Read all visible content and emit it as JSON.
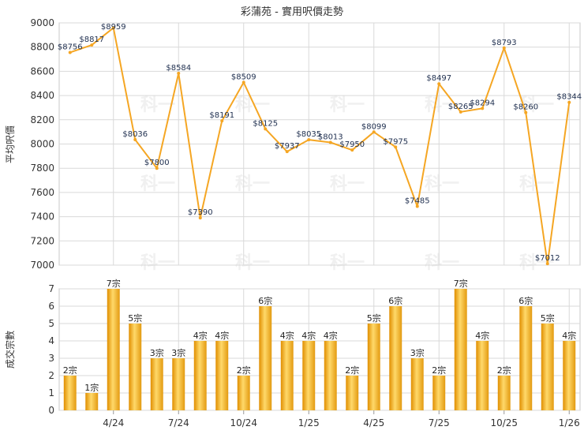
{
  "chart_data": [
    {
      "type": "line",
      "title": "彩蒲苑 - 實用呎價走勢",
      "ylabel": "平均呎價",
      "ylim": [
        7000,
        9000
      ],
      "yticks": [
        7000,
        7200,
        7400,
        7600,
        7800,
        8000,
        8200,
        8400,
        8600,
        8800,
        9000
      ],
      "values": [
        8756,
        8817,
        8959,
        8036,
        7800,
        8584,
        7390,
        8191,
        8509,
        8125,
        7937,
        8035,
        8013,
        7950,
        8099,
        7975,
        7485,
        8497,
        8265,
        8294,
        8793,
        8260,
        7012,
        8344
      ],
      "data_labels": [
        "$8756",
        "$8817",
        "$8959",
        "$8036",
        "$7800",
        "$8584",
        "$7390",
        "$8191",
        "$8509",
        "$8125",
        "$7937",
        "$8035",
        "$8013",
        "$7950",
        "$8099",
        "$7975",
        "$7485",
        "$8497",
        "$8265",
        "$8294",
        "$8793",
        "$8260",
        "$7012",
        "$8344"
      ],
      "color": "#f5a623",
      "grid": true
    },
    {
      "type": "bar",
      "ylabel": "成交宗數",
      "ylim": [
        0,
        7
      ],
      "yticks": [
        0,
        1,
        2,
        3,
        4,
        5,
        6,
        7
      ],
      "values": [
        2,
        1,
        7,
        5,
        3,
        3,
        4,
        4,
        2,
        6,
        4,
        4,
        4,
        2,
        5,
        6,
        3,
        2,
        7,
        4,
        2,
        6,
        5,
        4
      ],
      "data_labels": [
        "2宗",
        "1宗",
        "7宗",
        "5宗",
        "3宗",
        "3宗",
        "4宗",
        "4宗",
        "2宗",
        "6宗",
        "4宗",
        "4宗",
        "4宗",
        "2宗",
        "5宗",
        "6宗",
        "3宗",
        "2宗",
        "7宗",
        "4宗",
        "2宗",
        "6宗",
        "5宗",
        "4宗"
      ],
      "x_ticks": [
        {
          "index": 2,
          "label": "4/24"
        },
        {
          "index": 5,
          "label": "7/24"
        },
        {
          "index": 8,
          "label": "10/24"
        },
        {
          "index": 11,
          "label": "1/25"
        },
        {
          "index": 14,
          "label": "4/25"
        },
        {
          "index": 17,
          "label": "7/25"
        },
        {
          "index": 20,
          "label": "10/25"
        },
        {
          "index": 23,
          "label": "1/26"
        }
      ],
      "color": "#f5a623",
      "grid": true
    }
  ],
  "watermark": "科一"
}
